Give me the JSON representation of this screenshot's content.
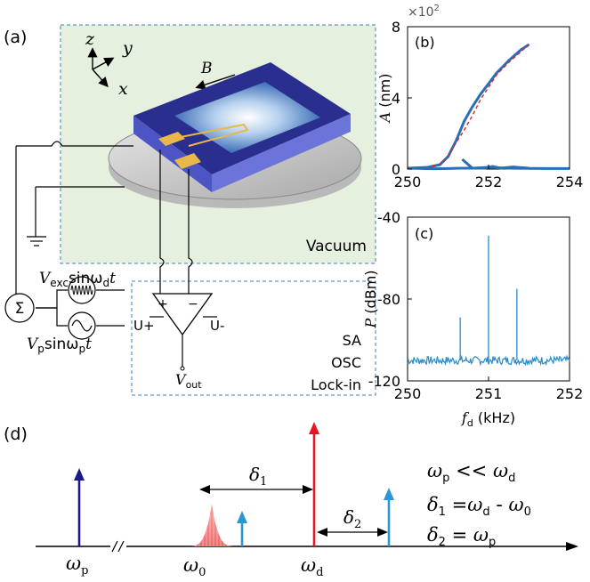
{
  "panel_a": {
    "label": "(a)",
    "axes": {
      "z": "z",
      "y": "y",
      "x": "x"
    },
    "field": "B",
    "vacuum": "Vacuum",
    "amp_plus": "+",
    "amp_minus": "−",
    "u_plus": "U+",
    "u_minus": "U-",
    "instruments": [
      "SA",
      "OSC",
      "Lock-in"
    ],
    "vout_main": "V",
    "vout_sub": "out",
    "sum": "Σ",
    "vexc": {
      "v": "V",
      "sub": "exc",
      "rest": "sinω",
      "sub2": "d",
      "t": "t"
    },
    "vp": {
      "v": "V",
      "sub": "p",
      "rest": "sinω",
      "sub2": "p",
      "t": "t"
    }
  },
  "chart_data": [
    {
      "panel": "(b)",
      "type": "line",
      "ylabel_main": "A",
      "ylabel_unit": " (nm)",
      "exponent": "×10",
      "exponent_power": "2",
      "xlim": [
        250,
        254
      ],
      "ylim": [
        0,
        8
      ],
      "xticks": [
        "250",
        "252",
        "254"
      ],
      "yticks": [
        "0",
        "4",
        "8"
      ],
      "series": [
        {
          "style": "solid",
          "color": "#2a6fb5",
          "x": [
            250.0,
            250.5,
            250.8,
            251.0,
            251.2,
            251.4,
            251.6,
            251.8,
            252.0,
            252.2,
            252.5,
            252.8,
            253.0
          ],
          "y": [
            0.05,
            0.1,
            0.25,
            0.7,
            1.6,
            2.7,
            3.5,
            4.2,
            4.8,
            5.4,
            6.1,
            6.7,
            7.0
          ]
        },
        {
          "style": "dashed",
          "color": "#d62728",
          "x": [
            250.0,
            250.5,
            250.8,
            251.0,
            251.2,
            251.4,
            251.6,
            251.8,
            252.0,
            252.2,
            252.5,
            252.8,
            253.0
          ],
          "y": [
            0.05,
            0.1,
            0.25,
            0.7,
            1.5,
            2.2,
            3.0,
            3.9,
            4.6,
            5.3,
            6.0,
            6.6,
            7.0
          ]
        },
        {
          "style": "solid",
          "color": "#2a6fb5",
          "x": [
            251.35,
            251.6,
            251.9,
            252.1,
            252.3,
            252.6,
            253.0
          ],
          "y": [
            0.55,
            0.05,
            0.05,
            0.15,
            0.05,
            0.12,
            0.05
          ]
        },
        {
          "style": "solid",
          "color": "#2a6fb5",
          "x": [
            250.0,
            250.6,
            251.0,
            251.3,
            251.6,
            252.0,
            252.5,
            253.0,
            253.5,
            254.0
          ],
          "y": [
            0.05,
            0.02,
            0.03,
            0.05,
            0.05,
            0.1,
            0.05,
            0.04,
            0.03,
            0.03
          ]
        }
      ]
    },
    {
      "panel": "(c)",
      "type": "line",
      "ylabel_main": "P",
      "ylabel_unit": " (dBm)",
      "xlabel_main": "f",
      "xlabel_sub": "d",
      "xlabel_unit": " (kHz)",
      "xlim": [
        250,
        252
      ],
      "ylim": [
        -120,
        -40
      ],
      "xticks": [
        "250",
        "251",
        "252"
      ],
      "yticks": [
        "-40",
        "-80",
        "-120"
      ],
      "noise_floor": -110,
      "peaks": [
        {
          "x": 250.65,
          "y": -89
        },
        {
          "x": 251.0,
          "y": -49
        },
        {
          "x": 251.35,
          "y": -75
        }
      ],
      "color": "#2a8cc8"
    }
  ],
  "panel_d": {
    "label": "(d)",
    "omega_p": {
      "main": "ω",
      "sub": "p"
    },
    "omega_0": {
      "main": "ω",
      "sub": "0"
    },
    "omega_d": {
      "main": "ω",
      "sub": "d"
    },
    "delta1": {
      "main": "δ",
      "sub": "1"
    },
    "delta2": {
      "main": "δ",
      "sub": "2"
    },
    "eq1": {
      "a": "ω",
      "a_sub": "p",
      "op": " << ",
      "b": "ω",
      "b_sub": "d"
    },
    "eq2": {
      "a": "δ",
      "a_sub": "1",
      "op": " =",
      "b": "ω",
      "b_sub": "d",
      "op2": " - ",
      "c": "ω",
      "c_sub": "0"
    },
    "eq3": {
      "a": "δ",
      "a_sub": "2",
      "op": " = ",
      "b": "ω",
      "b_sub": "p"
    },
    "colors": {
      "omega_p": "#1a1a8c",
      "omega_0": "#f08080",
      "omega_d": "#e8141e",
      "side": "#2a96d8"
    }
  }
}
